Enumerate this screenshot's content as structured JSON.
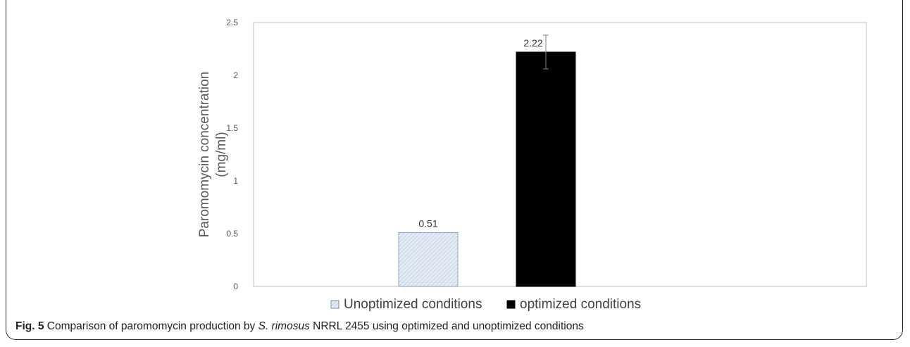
{
  "caption": {
    "fig_label": "Fig. 5",
    "text_before": " Comparison of paromomycin production by ",
    "organism": "S. rimosus",
    "text_after": " NRRL 2455 using optimized and unoptimized conditions"
  },
  "chart_data": {
    "type": "bar",
    "ylabel_line1": "Paromomycin concentration",
    "ylabel_line2": "(mg/ml)",
    "xlabel": "",
    "ylim": [
      0,
      2.5
    ],
    "yticks": [
      0,
      0.5,
      1,
      1.5,
      2,
      2.5
    ],
    "ytick_labels": [
      "0",
      "0.5",
      "1",
      "1.5",
      "2",
      "2.5"
    ],
    "grid": false,
    "legend_position": "bottom",
    "series": [
      {
        "name": "Unoptimized conditions",
        "value": 0.51,
        "label": "0.51",
        "fill": "#e3ecf7",
        "pattern": "diagonal-hatch"
      },
      {
        "name": "optimized conditions",
        "value": 2.22,
        "label": "2.22",
        "fill": "#000000",
        "error": 0.16
      }
    ]
  }
}
